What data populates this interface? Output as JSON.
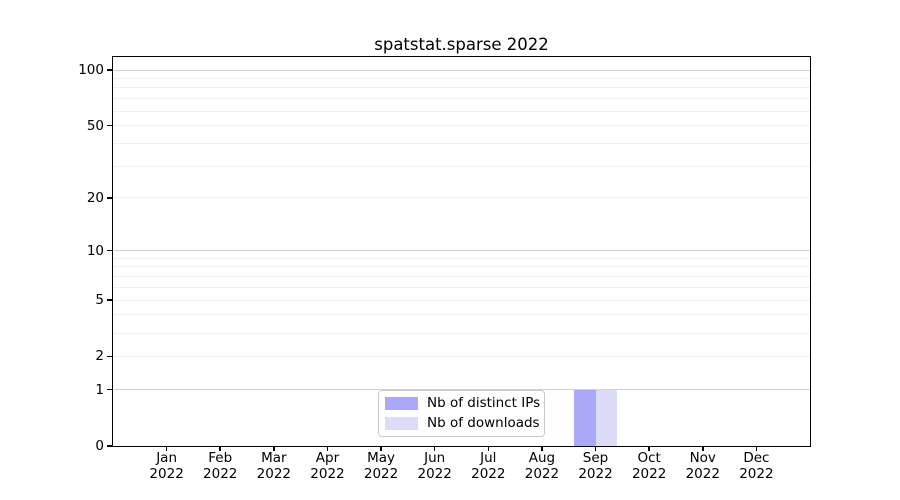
{
  "chart_data": {
    "type": "bar",
    "title": "spatstat.sparse 2022",
    "categories": [
      "Jan",
      "Feb",
      "Mar",
      "Apr",
      "May",
      "Jun",
      "Jul",
      "Aug",
      "Sep",
      "Oct",
      "Nov",
      "Dec"
    ],
    "year": "2022",
    "series": [
      {
        "name": "Nb of distinct IPs",
        "color": "#a9a9f8",
        "values": [
          0,
          0,
          0,
          0,
          0,
          0,
          0,
          0,
          1,
          0,
          0,
          0
        ]
      },
      {
        "name": "Nb of downloads",
        "color": "#dcdcf9",
        "values": [
          0,
          0,
          0,
          0,
          0,
          0,
          0,
          0,
          1,
          0,
          0,
          0
        ]
      }
    ],
    "yscale": "log1p",
    "ylim": [
      0,
      118
    ],
    "yticks": [
      0,
      1,
      2,
      5,
      10,
      20,
      50,
      100
    ],
    "y_gridlines_major": [
      1,
      10,
      100
    ],
    "y_gridlines_minor": [
      2,
      3,
      4,
      5,
      6,
      7,
      8,
      9,
      20,
      30,
      40,
      50,
      60,
      70,
      80,
      90
    ],
    "grid": true,
    "legend_position": "lower center",
    "colors": {
      "axis": "#000000",
      "grid_major": "#d0d0d0",
      "grid_minor": "#f0f0f0",
      "legend_border": "#c9c9c9"
    }
  }
}
